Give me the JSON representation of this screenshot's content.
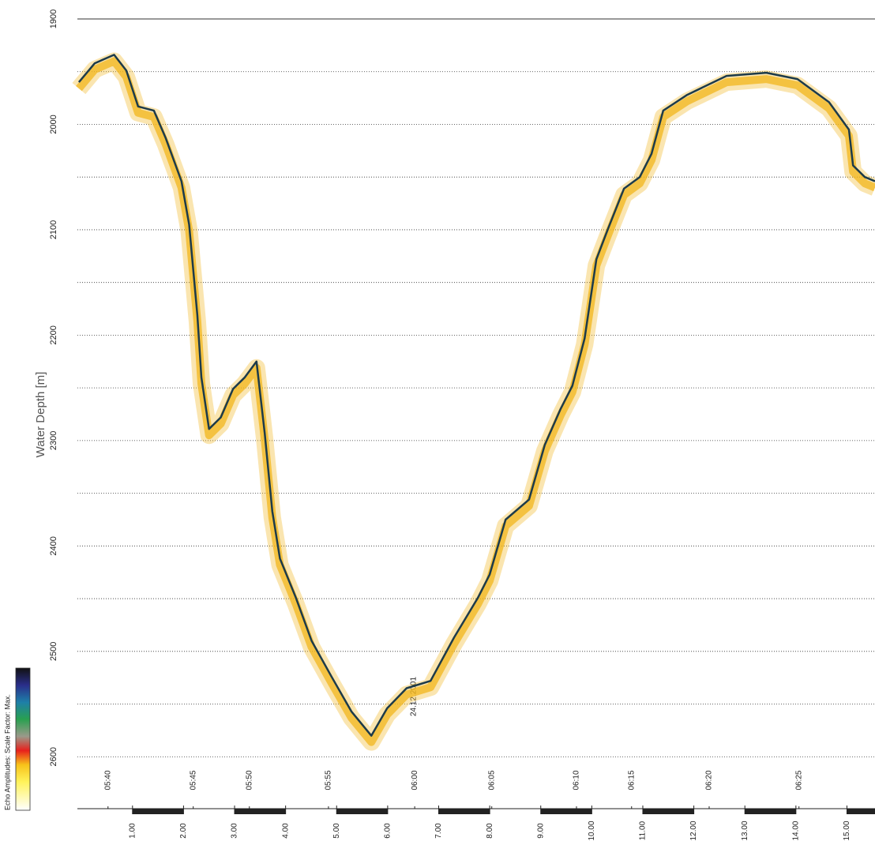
{
  "chart_data": {
    "type": "line",
    "y_label": "Water Depth [m]",
    "legend_label": "Echo Amplitudes:  Scale Factor: Max.",
    "date_label": "24.12.2001",
    "x": [
      -0.05,
      0.26,
      0.64,
      0.88,
      1.11,
      1.42,
      1.65,
      1.96,
      2.11,
      2.27,
      2.35,
      2.5,
      2.73,
      2.97,
      3.2,
      3.43,
      3.59,
      3.74,
      3.89,
      4.2,
      4.51,
      4.9,
      5.29,
      5.68,
      5.99,
      6.37,
      6.84,
      7.3,
      7.77,
      8.0,
      8.31,
      8.77,
      9.08,
      9.39,
      9.62,
      9.86,
      10.09,
      10.32,
      10.63,
      10.94,
      11.17,
      11.4,
      11.87,
      12.64,
      13.42,
      14.03,
      14.65,
      15.04,
      15.12,
      15.35,
      15.55
    ],
    "values": [
      1960,
      1942,
      1934,
      1949,
      1983,
      1987,
      2013,
      2054,
      2095,
      2181,
      2240,
      2289,
      2278,
      2251,
      2240,
      2225,
      2293,
      2367,
      2412,
      2449,
      2490,
      2524,
      2557,
      2580,
      2554,
      2535,
      2528,
      2487,
      2449,
      2427,
      2375,
      2356,
      2304,
      2270,
      2248,
      2203,
      2128,
      2099,
      2061,
      2050,
      2028,
      1987,
      1972,
      1954,
      1951,
      1957,
      1979,
      2005,
      2039,
      2050,
      2054
    ],
    "color": "#1d3b4a",
    "halo_color": "#f2b51c",
    "xlim": [
      -0.08,
      15.55
    ],
    "ylim": [
      1900,
      2650
    ],
    "yticks": [
      1900,
      2000,
      2100,
      2200,
      2300,
      2400,
      2500,
      2600
    ],
    "ygrid": [
      1950,
      2000,
      2050,
      2100,
      2150,
      2200,
      2250,
      2300,
      2350,
      2400,
      2450,
      2500,
      2550,
      2600
    ],
    "xticks": [
      {
        "value": 1,
        "label": "1.00"
      },
      {
        "value": 2,
        "label": "2.00"
      },
      {
        "value": 3,
        "label": "3.00"
      },
      {
        "value": 4,
        "label": "4.00"
      },
      {
        "value": 5,
        "label": "5.00"
      },
      {
        "value": 6,
        "label": "6.00"
      },
      {
        "value": 7,
        "label": "7.00"
      },
      {
        "value": 8,
        "label": "8.00"
      },
      {
        "value": 9,
        "label": "9.00"
      },
      {
        "value": 10,
        "label": "10.00"
      },
      {
        "value": 11,
        "label": "11.00"
      },
      {
        "value": 12,
        "label": "12.00"
      },
      {
        "value": 13,
        "label": "13.00"
      },
      {
        "value": 14,
        "label": "14.00"
      },
      {
        "value": 15,
        "label": "15.00"
      }
    ],
    "time_ticks": [
      {
        "value": 0.52,
        "label": "05:40"
      },
      {
        "value": 2.19,
        "label": "05:45"
      },
      {
        "value": 3.29,
        "label": "05:50"
      },
      {
        "value": 4.84,
        "label": "05:55"
      },
      {
        "value": 6.53,
        "label": "06:00"
      },
      {
        "value": 8.04,
        "label": "06:05"
      },
      {
        "value": 9.7,
        "label": "06:10"
      },
      {
        "value": 10.78,
        "label": "06:15"
      },
      {
        "value": 12.3,
        "label": "06:20"
      },
      {
        "value": 14.06,
        "label": "06:25"
      }
    ]
  }
}
